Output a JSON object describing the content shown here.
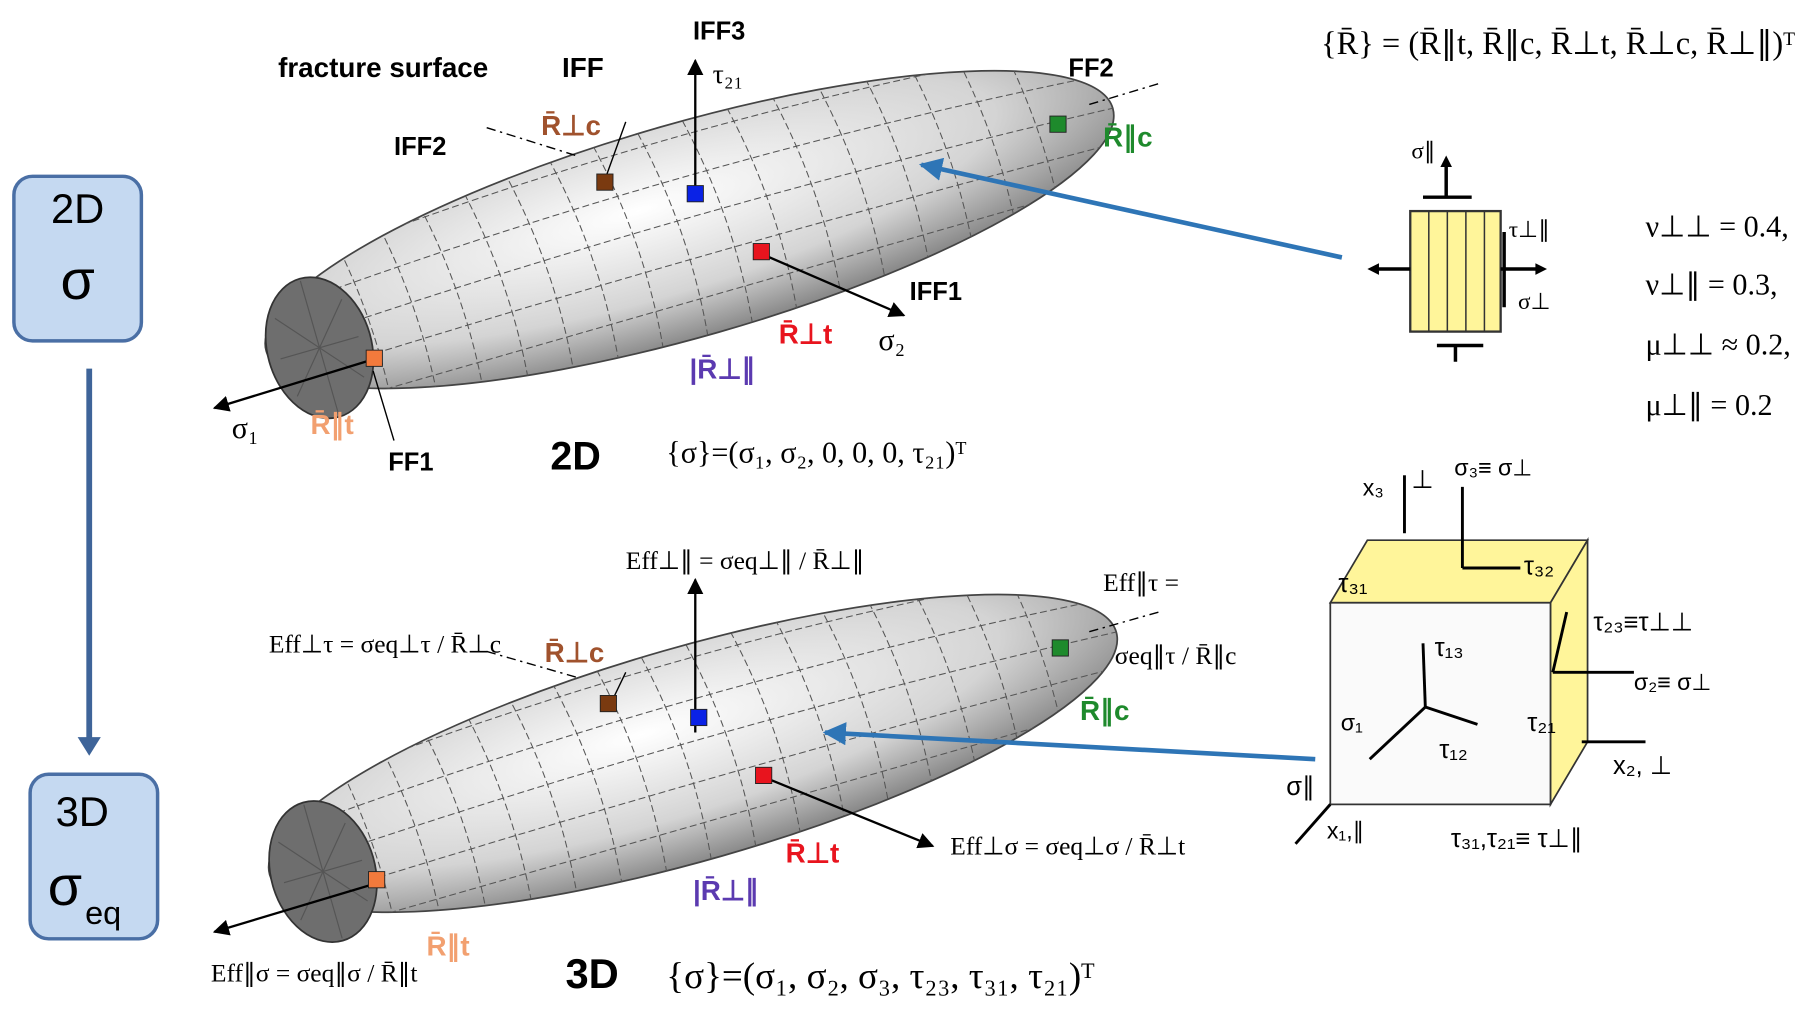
{
  "left_flow": {
    "top_box": {
      "line1": "2D",
      "line2": "σ"
    },
    "bottom_box": {
      "line1": "3D",
      "line2": "σ",
      "subscript": "eq"
    }
  },
  "top_diagram": {
    "labels": {
      "fracture_surface": "fracture surface",
      "iff": "IFF",
      "iff3": "IFF3",
      "tau21": "τ₂₁",
      "ff2": "FF2",
      "r_par_c": "R̄∥c",
      "iff2": "IFF2",
      "r_perp_c": "R̄⊥c",
      "iff1": "IFF1",
      "r_perp_t": "R̄⊥t",
      "sigma2": "σ₂",
      "r_perp_par": "|R̄⊥∥",
      "sigma1": "σ₁",
      "r_par_t": "R̄∥t",
      "ff1": "FF1"
    },
    "dim": "2D",
    "stress_vector": "{σ}=(σ₁, σ₂, 0, 0, 0, τ₂₁)ᵀ"
  },
  "strength_vector": "{R̄} = (R̄∥t, R̄∥c, R̄⊥t, R̄⊥c, R̄⊥∥)ᵀ",
  "element": {
    "sigma_par": "σ∥",
    "tau_perp_par": "τ⊥∥",
    "sigma_perp": "σ⊥"
  },
  "poisson": [
    "ν⊥⊥ = 0.4,",
    "ν⊥∥ = 0.3,",
    "μ⊥⊥ ≈ 0.2,",
    "μ⊥∥ = 0.2"
  ],
  "bottom_diagram": {
    "labels": {
      "eff_perp_par": "Eff⊥∥ = σeq⊥∥ / R̄⊥∥",
      "eff_par_tau_1": "Eff∥τ =",
      "eff_par_tau_2": "σeq∥τ /  R̄∥c",
      "eff_perp_tau": "Eff⊥τ = σeq⊥τ / R̄⊥c",
      "r_perp_c": "R̄⊥c",
      "r_par_c": "R̄∥c",
      "r_perp_t": "R̄⊥t",
      "eff_perp_sigma": "Eff⊥σ = σeq⊥σ / R̄⊥t",
      "r_perp_par": "|R̄⊥∥",
      "r_par_t": "R̄∥t",
      "eff_par_sigma": "Eff∥σ = σeq∥σ / R̄∥t"
    },
    "dim": "3D",
    "stress_vector": "{σ}=(σ₁, σ₂, σ₃, τ₂₃, τ₃₁, τ₂₁)ᵀ"
  },
  "cube": {
    "x3": "x₃",
    "perp3": "⊥",
    "sigma3": "σ₃≡ σ⊥",
    "tau31": "τ₃₁",
    "tau32": "τ₃₂",
    "tau23": "τ₂₃≡τ⊥⊥",
    "tau13": "τ₁₃",
    "sigma2": "σ₂≡ σ⊥",
    "sigma1": "σ₁",
    "tau12": "τ₁₂",
    "tau21": "τ₂₁",
    "x2": "x₂, ⊥",
    "sigma_par": "σ∥",
    "x1": "x₁,∥",
    "shear": "τ₃₁,τ₂₁≡ τ⊥∥"
  }
}
